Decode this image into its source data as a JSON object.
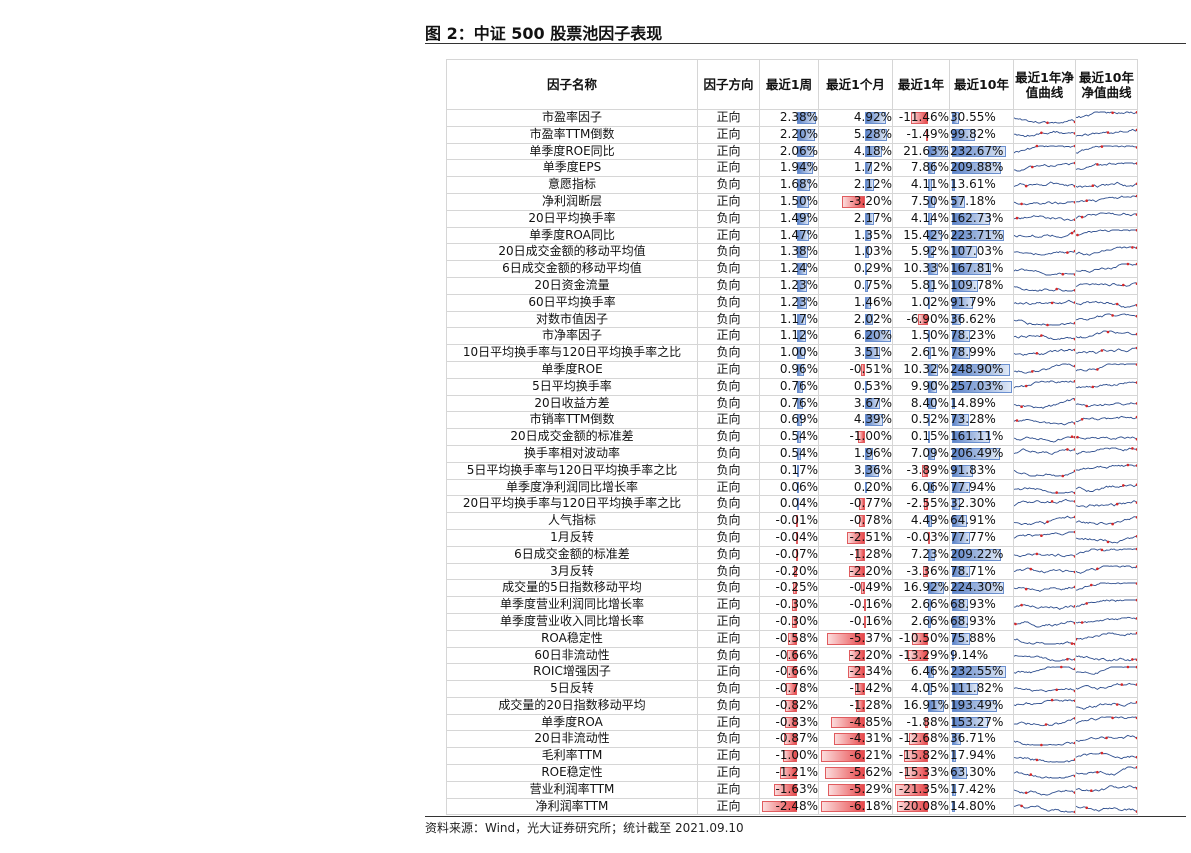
{
  "title": "图 2：中证 500 股票池因子表现",
  "source": "资料来源：Wind，光大证券研究所；统计截至 2021.09.10",
  "headers": [
    "因子名称",
    "因子方向",
    "最近1周",
    "最近1个月",
    "最近1年",
    "最近10年",
    "最近1年净值曲线",
    "最近10年净值曲线"
  ],
  "colors": {
    "positive_bar": "#5b82c7",
    "negative_bar": "#e8474a",
    "spark_line": "#2f4f8f",
    "spark_marker": "#d62728"
  },
  "rows": [
    [
      "市盈率因子",
      "正向",
      "2.38%",
      "4.92%",
      "-11.46%",
      "30.55%"
    ],
    [
      "市盈率TTM倒数",
      "正向",
      "2.20%",
      "5.28%",
      "-1.49%",
      "99.82%"
    ],
    [
      "单季度ROE同比",
      "正向",
      "2.06%",
      "4.18%",
      "21.63%",
      "232.67%"
    ],
    [
      "单季度EPS",
      "正向",
      "1.94%",
      "1.72%",
      "7.86%",
      "209.88%"
    ],
    [
      "意愿指标",
      "负向",
      "1.68%",
      "2.12%",
      "4.11%",
      "13.61%"
    ],
    [
      "净利润断层",
      "正向",
      "1.50%",
      "-3.20%",
      "7.50%",
      "57.18%"
    ],
    [
      "20日平均换手率",
      "负向",
      "1.49%",
      "2.17%",
      "4.14%",
      "162.73%"
    ],
    [
      "单季度ROA同比",
      "正向",
      "1.47%",
      "1.35%",
      "15.42%",
      "223.71%"
    ],
    [
      "20日成交金额的移动平均值",
      "负向",
      "1.38%",
      "1.03%",
      "5.92%",
      "107.03%"
    ],
    [
      "6日成交金额的移动平均值",
      "负向",
      "1.24%",
      "0.29%",
      "10.33%",
      "167.81%"
    ],
    [
      "20日资金流量",
      "负向",
      "1.23%",
      "0.75%",
      "5.81%",
      "109.78%"
    ],
    [
      "60日平均换手率",
      "负向",
      "1.23%",
      "1.46%",
      "1.02%",
      "91.79%"
    ],
    [
      "对数市值因子",
      "负向",
      "1.17%",
      "2.02%",
      "-6.90%",
      "36.62%"
    ],
    [
      "市净率因子",
      "正向",
      "1.12%",
      "6.20%",
      "1.50%",
      "78.23%"
    ],
    [
      "10日平均换手率与120日平均换手率之比",
      "负向",
      "1.00%",
      "3.51%",
      "2.61%",
      "78.99%"
    ],
    [
      "单季度ROE",
      "正向",
      "0.96%",
      "-0.51%",
      "10.32%",
      "248.90%"
    ],
    [
      "5日平均换手率",
      "负向",
      "0.76%",
      "0.53%",
      "9.90%",
      "257.03%"
    ],
    [
      "20日收益方差",
      "负向",
      "0.76%",
      "3.67%",
      "8.40%",
      "14.89%"
    ],
    [
      "市销率TTM倒数",
      "正向",
      "0.69%",
      "4.39%",
      "0.52%",
      "73.28%"
    ],
    [
      "20日成交金额的标准差",
      "负向",
      "0.54%",
      "-1.00%",
      "0.15%",
      "161.11%"
    ],
    [
      "换手率相对波动率",
      "负向",
      "0.54%",
      "1.96%",
      "7.09%",
      "206.49%"
    ],
    [
      "5日平均换手率与120日平均换手率之比",
      "负向",
      "0.17%",
      "3.36%",
      "-3.89%",
      "91.83%"
    ],
    [
      "单季度净利润同比增长率",
      "正向",
      "0.06%",
      "0.20%",
      "6.06%",
      "77.94%"
    ],
    [
      "20日平均换手率与120日平均换手率之比",
      "负向",
      "0.04%",
      "-0.77%",
      "-2.55%",
      "32.30%"
    ],
    [
      "人气指标",
      "负向",
      "-0.01%",
      "-0.78%",
      "4.49%",
      "64.91%"
    ],
    [
      "1月反转",
      "负向",
      "-0.04%",
      "-2.51%",
      "-0.03%",
      "77.77%"
    ],
    [
      "6日成交金额的标准差",
      "负向",
      "-0.07%",
      "-1.28%",
      "7.23%",
      "209.22%"
    ],
    [
      "3月反转",
      "负向",
      "-0.20%",
      "-2.20%",
      "-3.36%",
      "78.71%"
    ],
    [
      "成交量的5日指数移动平均",
      "负向",
      "-0.25%",
      "-0.49%",
      "16.92%",
      "224.30%"
    ],
    [
      "单季度营业利润同比增长率",
      "正向",
      "-0.30%",
      "-0.16%",
      "2.66%",
      "68.93%"
    ],
    [
      "单季度营业收入同比增长率",
      "正向",
      "-0.30%",
      "-0.16%",
      "2.66%",
      "68.93%"
    ],
    [
      "ROA稳定性",
      "正向",
      "-0.58%",
      "-5.37%",
      "-10.50%",
      "75.88%"
    ],
    [
      "60日非流动性",
      "负向",
      "-0.66%",
      "-2.20%",
      "-13.29%",
      "9.14%"
    ],
    [
      "ROIC增强因子",
      "正向",
      "-0.66%",
      "-2.34%",
      "6.46%",
      "232.55%"
    ],
    [
      "5日反转",
      "负向",
      "-0.78%",
      "-1.42%",
      "4.05%",
      "111.82%"
    ],
    [
      "成交量的20日指数移动平均",
      "负向",
      "-0.82%",
      "-1.28%",
      "16.91%",
      "193.49%"
    ],
    [
      "单季度ROA",
      "正向",
      "-0.83%",
      "-4.85%",
      "-1.88%",
      "153.27%"
    ],
    [
      "20日非流动性",
      "负向",
      "-0.87%",
      "-4.31%",
      "-12.68%",
      "36.71%"
    ],
    [
      "毛利率TTM",
      "正向",
      "-1.00%",
      "-6.21%",
      "-15.82%",
      "17.94%"
    ],
    [
      "ROE稳定性",
      "正向",
      "-1.21%",
      "-5.62%",
      "-15.33%",
      "63.30%"
    ],
    [
      "营业利润率TTM",
      "正向",
      "-1.63%",
      "-5.29%",
      "-21.35%",
      "17.42%"
    ],
    [
      "净利润率TTM",
      "正向",
      "-2.48%",
      "-6.18%",
      "-20.08%",
      "14.80%"
    ]
  ]
}
